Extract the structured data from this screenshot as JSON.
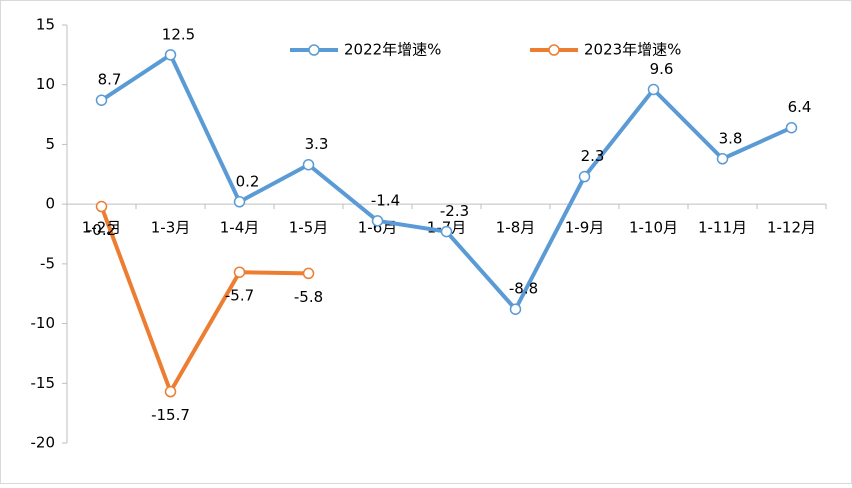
{
  "chart_data": {
    "type": "line",
    "categories": [
      "1-2月",
      "1-3月",
      "1-4月",
      "1-5月",
      "1-6月",
      "1-7月",
      "1-8月",
      "1-9月",
      "1-10月",
      "1-11月",
      "1-12月"
    ],
    "series": [
      {
        "name": "2022年增速%",
        "color": "#5b9bd5",
        "values": [
          8.7,
          12.5,
          0.2,
          3.3,
          -1.4,
          -2.3,
          -8.8,
          2.3,
          9.6,
          3.8,
          6.4
        ]
      },
      {
        "name": "2023年增速%",
        "color": "#ed7d31",
        "values": [
          -0.2,
          -15.7,
          -5.7,
          -5.8,
          null,
          null,
          null,
          null,
          null,
          null,
          null
        ]
      }
    ],
    "ylim": [
      -20,
      15
    ],
    "yticks": [
      -20,
      -15,
      -10,
      -5,
      0,
      5,
      10,
      15
    ],
    "legend": "top"
  }
}
